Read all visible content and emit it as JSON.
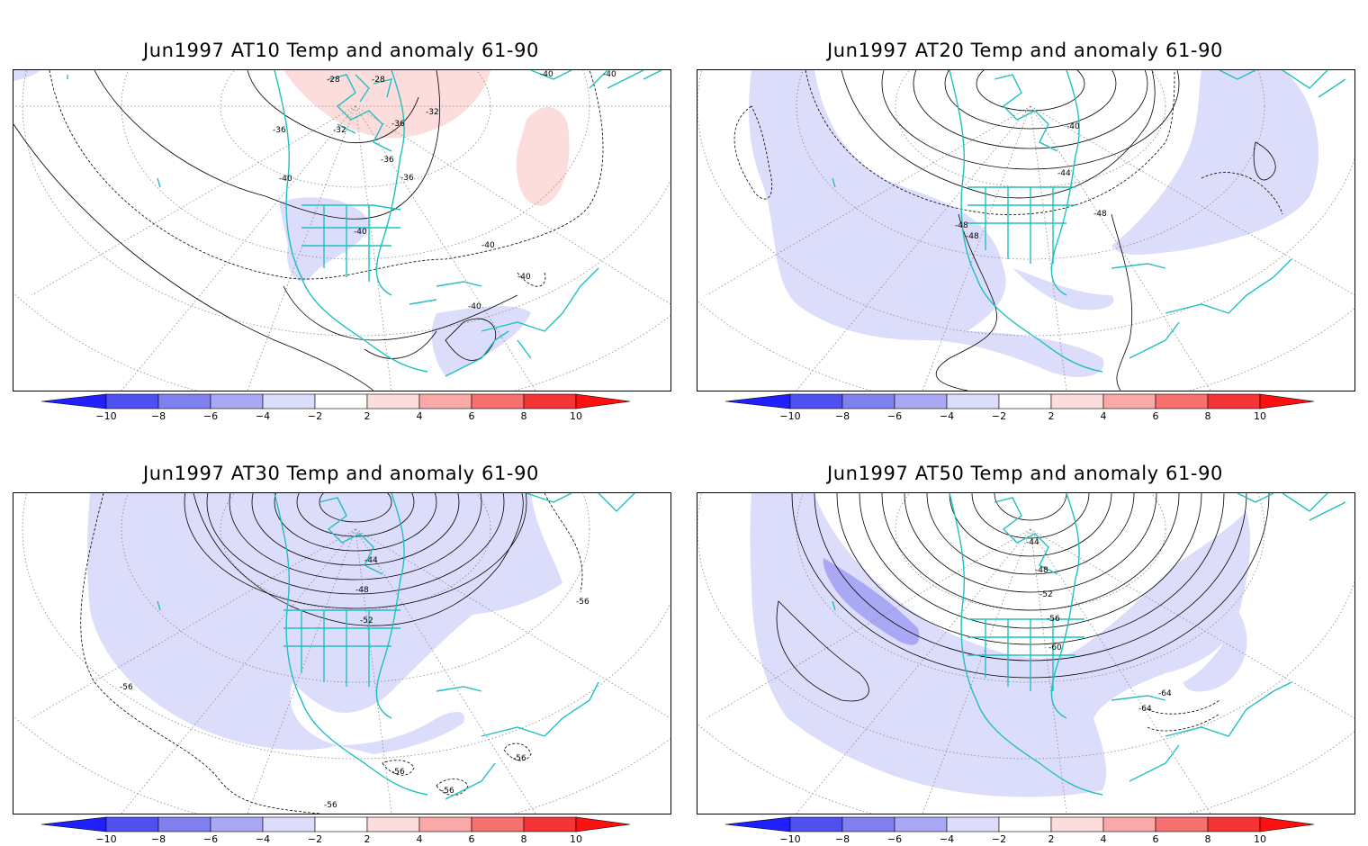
{
  "panels": [
    {
      "title": "Jun1997 AT10 Temp and anomaly 61-90",
      "contour_labels": [
        "-28",
        "-28",
        "-32",
        "-32",
        "-36",
        "-36",
        "-36",
        "-36",
        "-40",
        "-40",
        "-40",
        "-40",
        "-40",
        "-40",
        "-40"
      ]
    },
    {
      "title": "Jun1997 AT20 Temp and anomaly 61-90",
      "contour_labels": [
        "-40",
        "-44",
        "-48",
        "-48",
        "-48"
      ]
    },
    {
      "title": "Jun1997 AT30 Temp and anomaly 61-90",
      "contour_labels": [
        "-44",
        "-48",
        "-52",
        "-56",
        "-56",
        "-56",
        "-56",
        "-56",
        "-56"
      ]
    },
    {
      "title": "Jun1997 AT50 Temp and anomaly 61-90",
      "contour_labels": [
        "-44",
        "-48",
        "-52",
        "-56",
        "-60",
        "-64",
        "-64"
      ]
    }
  ],
  "colorbar": {
    "labels": [
      "−10",
      "−8",
      "−6",
      "−4",
      "−2",
      "2",
      "4",
      "6",
      "8",
      "10"
    ],
    "colors": [
      "#2020ff",
      "#5050f0",
      "#8080f0",
      "#a8a8f5",
      "#dcdcfb",
      "#ffffff",
      "#fddcdc",
      "#fba8a8",
      "#f77070",
      "#f53535",
      "#ff1010"
    ]
  },
  "colors": {
    "coastline": "#20c0c0",
    "contour": "#000000",
    "grid": "#888888",
    "anomaly_neg_light": "#dcdcfb",
    "anomaly_neg_mid": "#a8a8f5",
    "anomaly_pos_light": "#fddcdc"
  }
}
